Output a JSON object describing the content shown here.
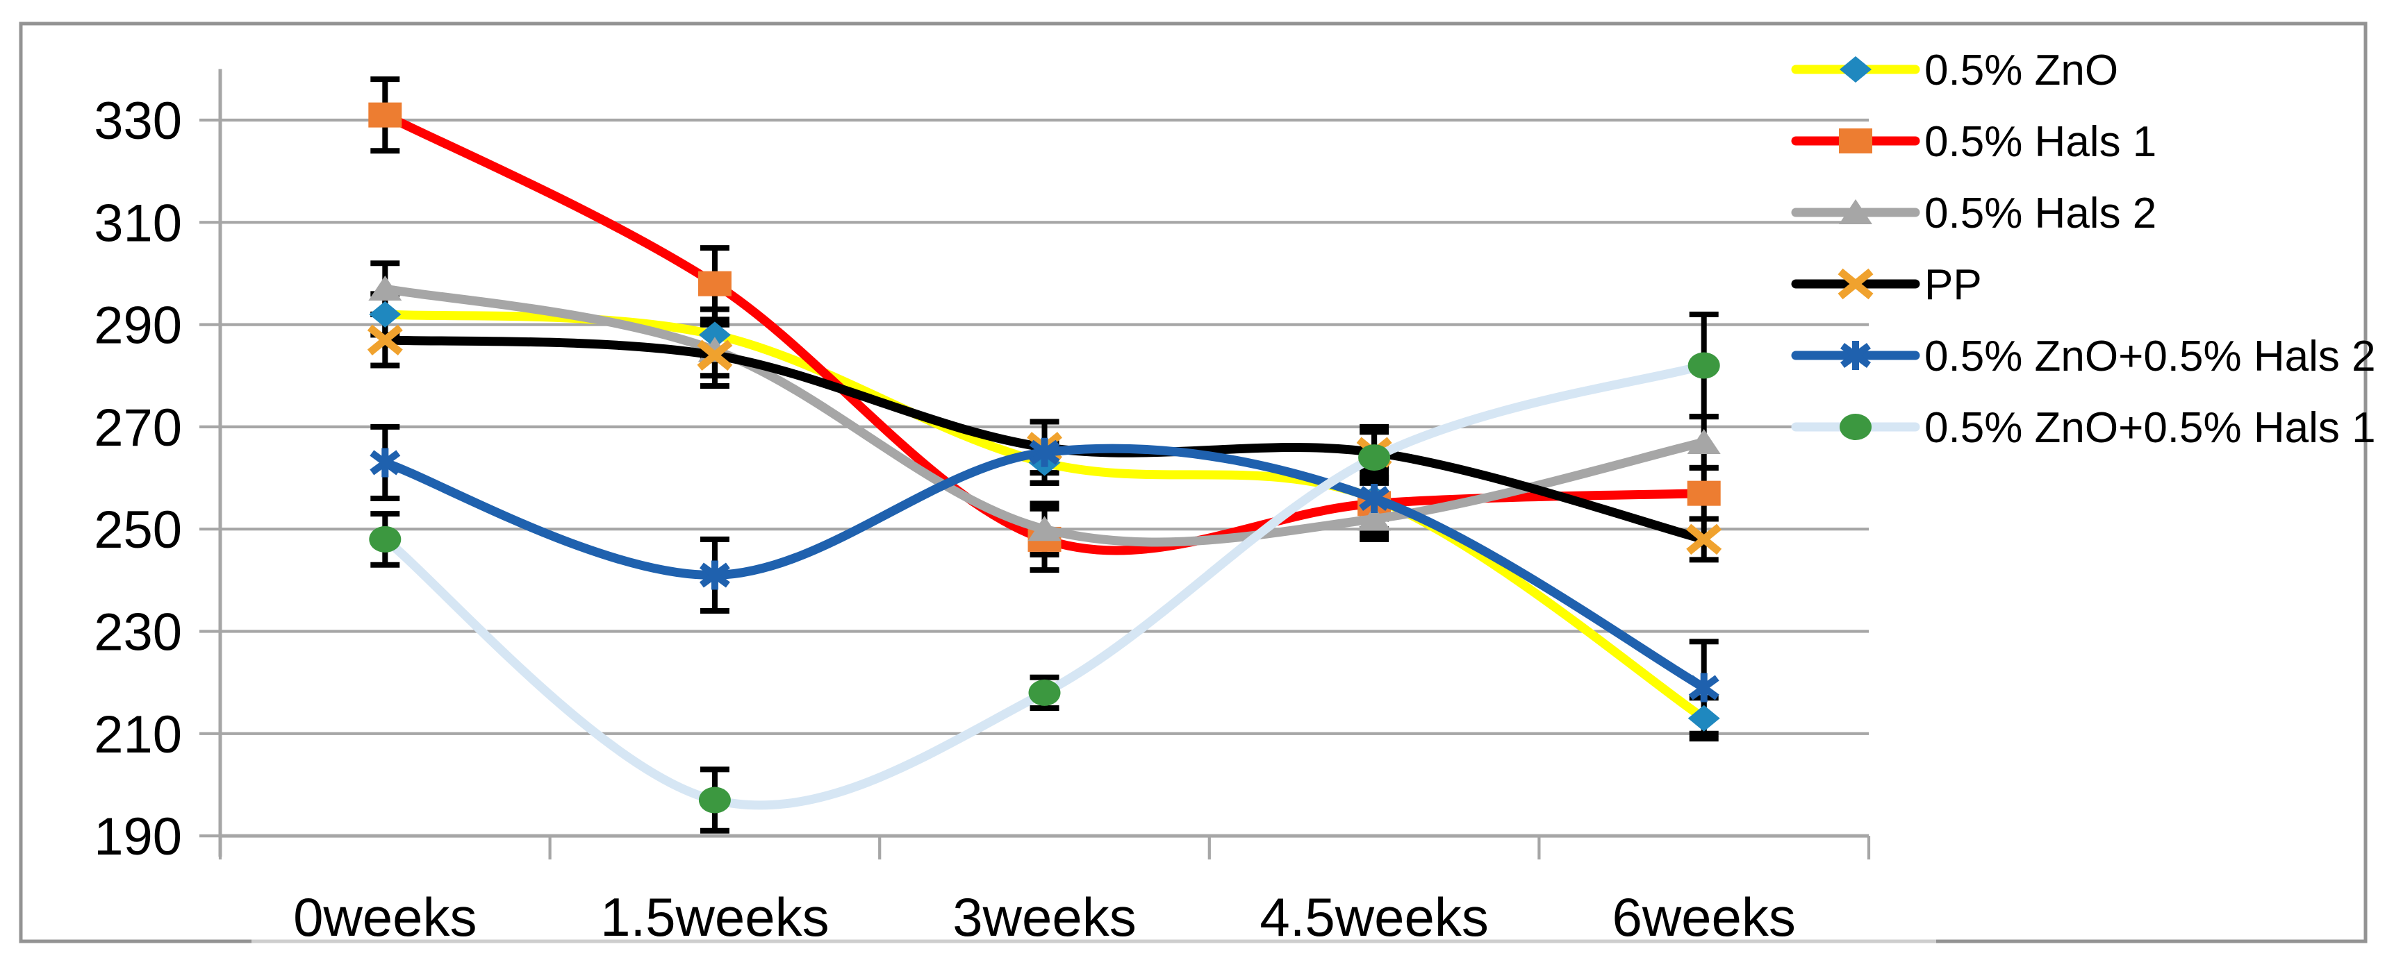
{
  "chart_data": {
    "type": "line",
    "title": "",
    "xlabel": "",
    "ylabel": "",
    "categories": [
      "0weeks",
      "1.5weeks",
      "3weeks",
      "4.5weeks",
      "6weeks"
    ],
    "yticks": [
      330,
      310,
      290,
      270,
      250,
      230,
      210,
      190
    ],
    "ylim": [
      190,
      340
    ],
    "ytick_step": 20,
    "grid": true,
    "smooth_lines": true,
    "legend_position": "right",
    "series": [
      {
        "name": "0.5% ZnO",
        "line_color": "#FFFF00",
        "marker": "diamond",
        "marker_color": "#1F88BF",
        "values": [
          292,
          288,
          263,
          256,
          213
        ],
        "errors": [
          4,
          5,
          4,
          4,
          4
        ]
      },
      {
        "name": "0.5% Hals 1",
        "line_color": "#FF0000",
        "marker": "square",
        "marker_color": "#ED7D31",
        "values": [
          331,
          298,
          248,
          255,
          257
        ],
        "errors": [
          7,
          7,
          6,
          6,
          5
        ]
      },
      {
        "name": "0.5% Hals 2",
        "line_color": "#A6A6A6",
        "marker": "triangle",
        "marker_color": "#A6A6A6",
        "values": [
          297,
          285,
          250,
          252,
          267
        ],
        "errors": [
          5,
          5,
          5,
          4,
          5
        ]
      },
      {
        "name": "PP",
        "line_color": "#000000",
        "marker": "x",
        "marker_color": "#F0A22E",
        "values": [
          287,
          284,
          266,
          265,
          248
        ],
        "errors": [
          5,
          6,
          5,
          5,
          4
        ]
      },
      {
        "name": "0.5% ZnO+0.5% Hals 2",
        "line_color": "#1F61AE",
        "marker": "asterisk",
        "marker_color": "#1F61AE",
        "values": [
          263,
          241,
          265,
          256,
          219
        ],
        "errors": [
          7,
          7,
          6,
          6,
          9
        ]
      },
      {
        "name": "0.5% ZnO+0.5% Hals 1",
        "line_color": "#D6E6F4",
        "marker": "circle",
        "marker_color": "#3C9840",
        "values": [
          248,
          197,
          218,
          264,
          282
        ],
        "errors": [
          5,
          6,
          3,
          5,
          10
        ]
      }
    ],
    "colors": {
      "gridline": "#A6A6A6",
      "axis": "#A6A6A6",
      "error_bar": "#000000",
      "frame_border": "#939393",
      "text": "#000000",
      "background": "#FFFFFF"
    }
  }
}
